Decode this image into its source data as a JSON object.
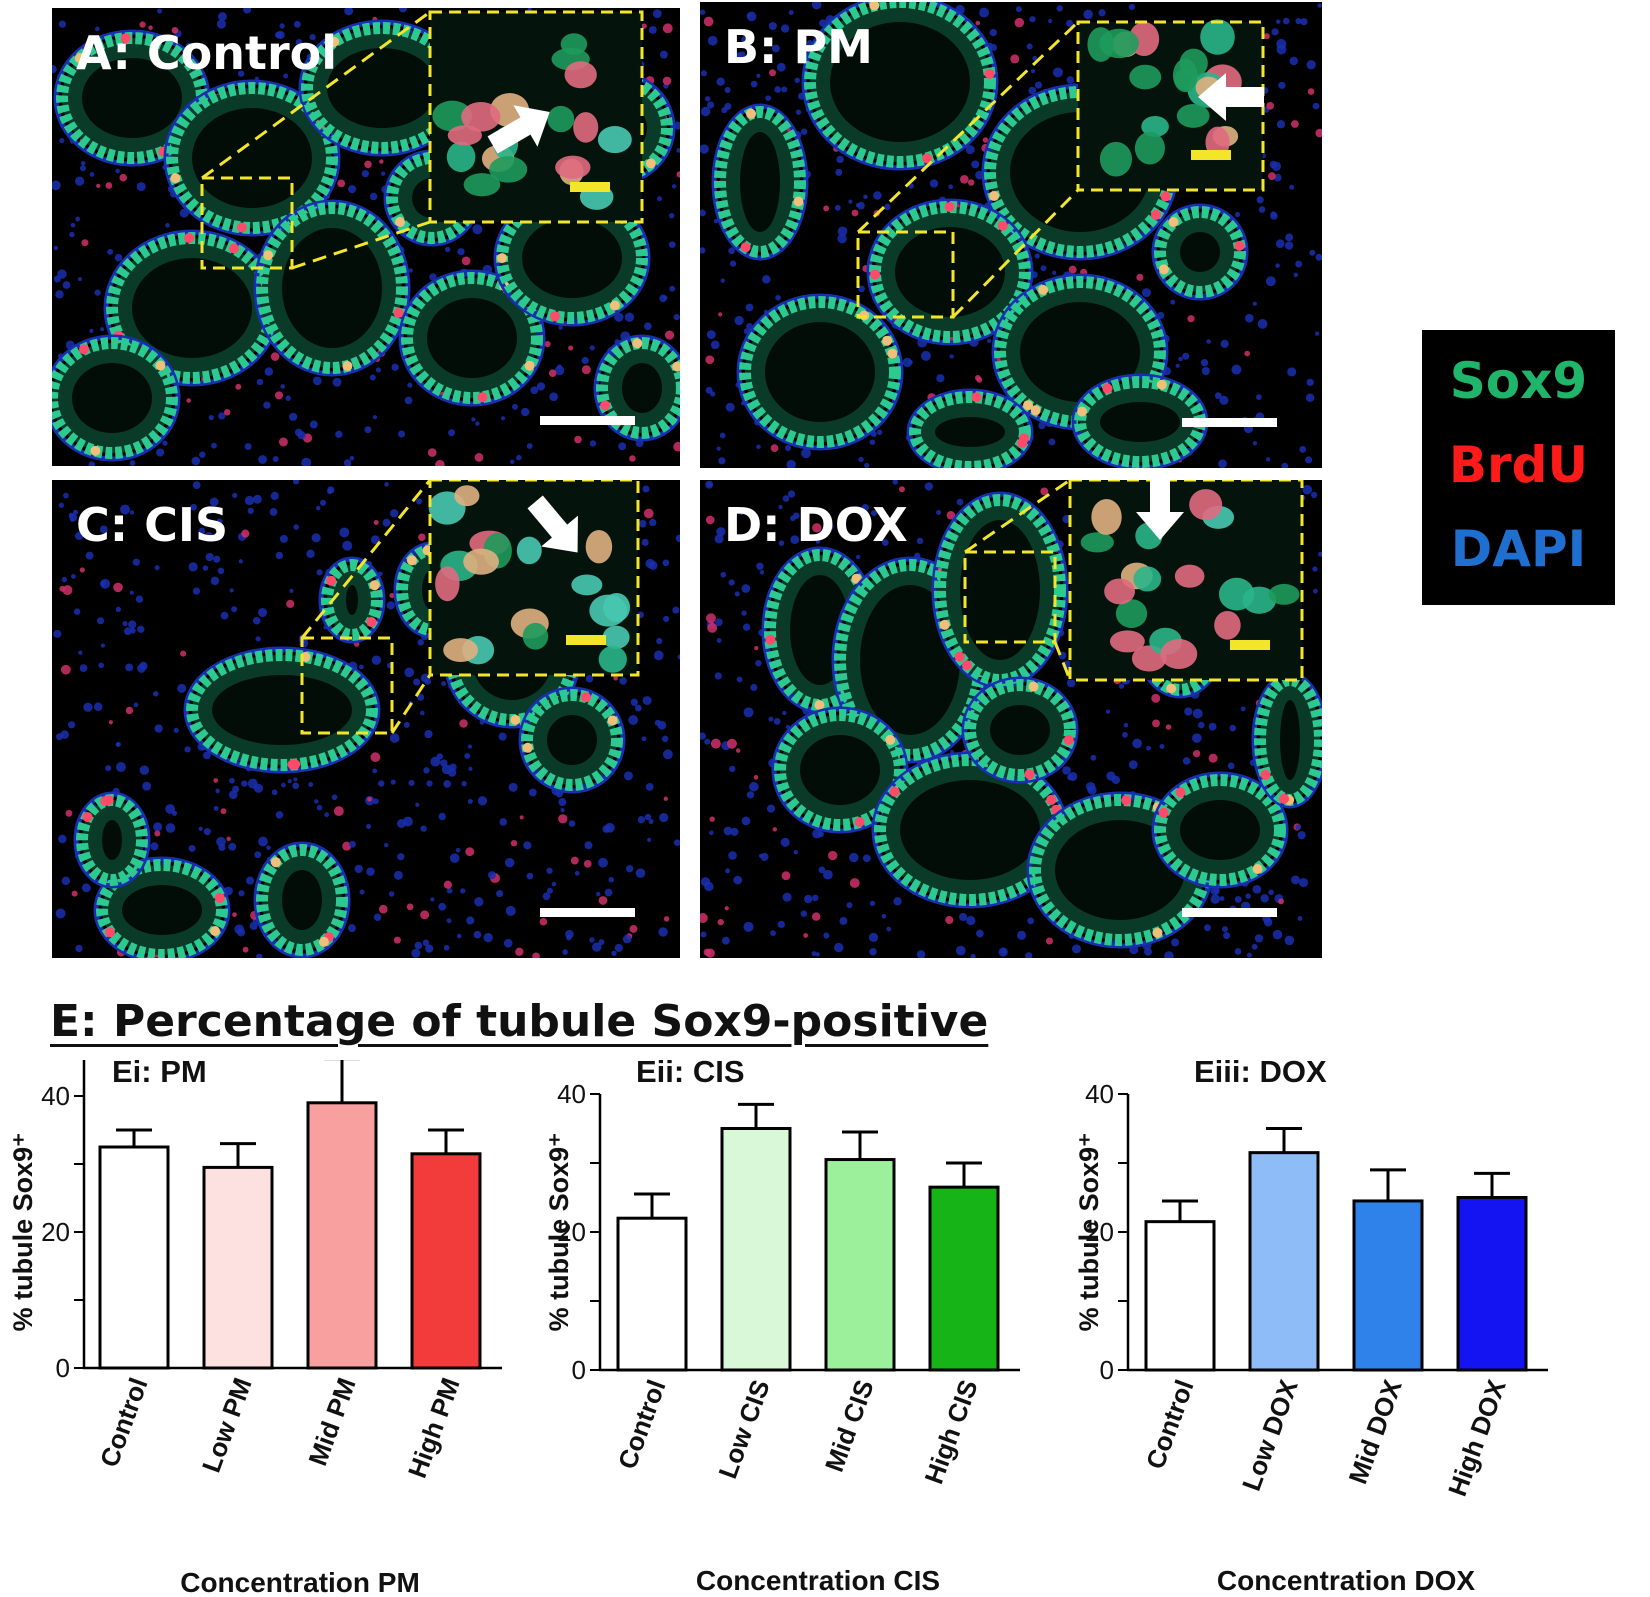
{
  "panels": [
    {
      "id": "A",
      "label": "A: Control"
    },
    {
      "id": "B",
      "label": "B: PM"
    },
    {
      "id": "C",
      "label": "C: CIS"
    },
    {
      "id": "D",
      "label": "D: DOX"
    }
  ],
  "legend": {
    "sox9": "Sox9",
    "brdu": "BrdU",
    "dapi": "DAPI",
    "colors": {
      "sox9": "#1fb56a",
      "brdu": "#ff1a1a",
      "dapi": "#1f6fd0"
    }
  },
  "section_title": "E: Percentage of tubule Sox9-positive",
  "chart_data": [
    {
      "type": "bar",
      "title": "Ei: PM",
      "ylabel": "% tubule Sox9⁺",
      "xlabel": "Concentration PM",
      "categories": [
        "Control",
        "Low PM",
        "Mid PM",
        "High PM"
      ],
      "values": [
        32.5,
        29.5,
        39,
        31.5
      ],
      "errors": [
        2.5,
        3.5,
        6.5,
        3.5
      ],
      "colors": [
        "#ffffff",
        "#fde0e0",
        "#f8a0a0",
        "#f23c3c"
      ],
      "yticks": [
        0,
        20,
        40
      ],
      "ylim": [
        0,
        50
      ]
    },
    {
      "type": "bar",
      "title": "Eii: CIS",
      "ylabel": "% tubule Sox9⁺",
      "xlabel": "Concentration CIS",
      "categories": [
        "Control",
        "Low CIS",
        "Mid CIS",
        "High CIS"
      ],
      "values": [
        22,
        35,
        30.5,
        26.5
      ],
      "errors": [
        3.5,
        3.5,
        4,
        3.5
      ],
      "colors": [
        "#ffffff",
        "#d8f8d8",
        "#9cf09c",
        "#16b416"
      ],
      "yticks": [
        0,
        20,
        40
      ],
      "ylim": [
        0,
        40
      ]
    },
    {
      "type": "bar",
      "title": "Eiii: DOX",
      "ylabel": "% tubule Sox9⁺",
      "xlabel": "Concentration DOX",
      "categories": [
        "Control",
        "Low DOX",
        "Mid DOX",
        "High DOX"
      ],
      "values": [
        21.5,
        31.5,
        24.5,
        25
      ],
      "errors": [
        3,
        3.5,
        4.5,
        3.5
      ],
      "colors": [
        "#ffffff",
        "#8dbcf6",
        "#2f82ea",
        "#1414f2"
      ],
      "yticks": [
        0,
        20,
        40
      ],
      "ylim": [
        0,
        40
      ]
    }
  ]
}
